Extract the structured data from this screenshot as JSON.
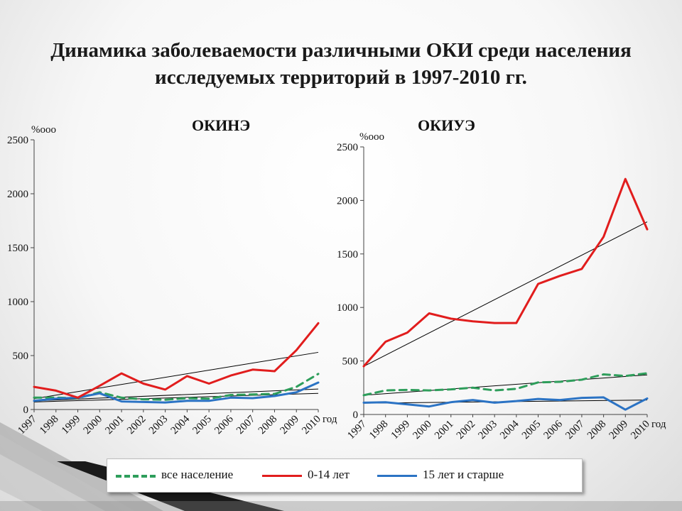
{
  "title_line1": "Динамика заболеваемости различными ОКИ среди населения",
  "title_line2": "исследуемых территорий  в 1997-2010 гг.",
  "legend": [
    {
      "label": "все население",
      "color": "#2e9e5b",
      "style": "dashed"
    },
    {
      "label": "0-14 лет",
      "color": "#e11d1d",
      "style": "solid"
    },
    {
      "label": "15 лет и старше",
      "color": "#2b73c4",
      "style": "solid"
    }
  ],
  "trendline_color": "#000000",
  "chart_data": [
    {
      "type": "line",
      "heading": "ОКИНЭ",
      "ylabel": "%ооо",
      "xlabel": "год",
      "ylim": [
        0,
        2500
      ],
      "yticks": [
        0,
        500,
        1000,
        1500,
        2000,
        2500
      ],
      "categories": [
        "1997",
        "1998",
        "1999",
        "2000",
        "2001",
        "2002",
        "2003",
        "2004",
        "2005",
        "2006",
        "2007",
        "2008",
        "2009",
        "2010"
      ],
      "series": [
        {
          "name": "все население",
          "values": [
            110,
            110,
            105,
            160,
            110,
            95,
            90,
            105,
            100,
            135,
            140,
            145,
            210,
            330
          ]
        },
        {
          "name": "0-14 лет",
          "values": [
            210,
            175,
            110,
            220,
            335,
            240,
            185,
            310,
            240,
            315,
            370,
            355,
            550,
            800
          ]
        },
        {
          "name": "15 лет и старше",
          "values": [
            80,
            100,
            110,
            150,
            75,
            70,
            65,
            80,
            80,
            110,
            105,
            125,
            160,
            250
          ]
        }
      ],
      "trendlines": [
        {
          "from": 100,
          "to": 530
        },
        {
          "from": 80,
          "to": 190
        },
        {
          "from": 70,
          "to": 150
        }
      ]
    },
    {
      "type": "line",
      "heading": "ОКИУЭ",
      "ylabel": "%ооо",
      "xlabel": "год",
      "ylim": [
        0,
        2500
      ],
      "yticks": [
        0,
        500,
        1000,
        1500,
        2000,
        2500
      ],
      "categories": [
        "1997",
        "1998",
        "1999",
        "2000",
        "2001",
        "2002",
        "2003",
        "2004",
        "2005",
        "2006",
        "2007",
        "2008",
        "2009",
        "2010"
      ],
      "series": [
        {
          "name": "все население",
          "values": [
            180,
            225,
            230,
            225,
            235,
            250,
            225,
            240,
            300,
            305,
            325,
            375,
            360,
            385
          ]
        },
        {
          "name": "0-14 лет",
          "values": [
            450,
            680,
            765,
            945,
            895,
            870,
            855,
            855,
            1220,
            1295,
            1360,
            1660,
            2200,
            1730
          ]
        },
        {
          "name": "15 лет и старше",
          "values": [
            110,
            115,
            95,
            75,
            115,
            135,
            110,
            125,
            145,
            135,
            155,
            160,
            45,
            150
          ]
        }
      ],
      "trendlines": [
        {
          "from": 450,
          "to": 1800
        },
        {
          "from": 180,
          "to": 370
        },
        {
          "from": 105,
          "to": 135
        }
      ]
    }
  ]
}
